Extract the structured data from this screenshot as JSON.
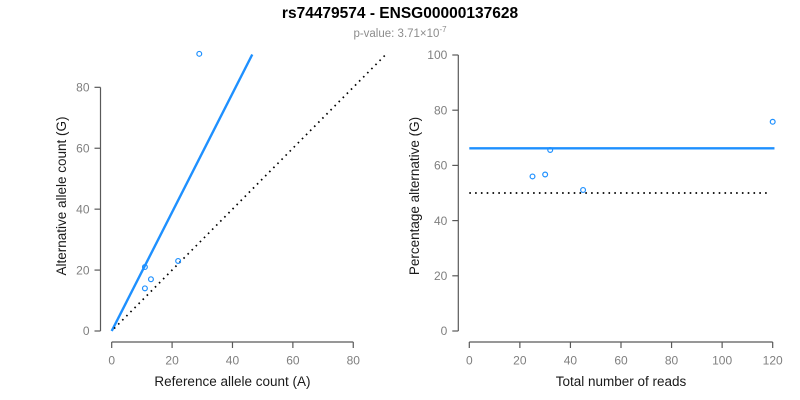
{
  "header": {
    "title": "rs74479574 - ENSG00000137628",
    "pvalue_text": "p-value: 3.71×10",
    "pvalue_exponent": "-7"
  },
  "colors": {
    "line_blue": "#1E90FF",
    "line_black": "#000000",
    "axis": "#595959",
    "tick_label": "#7f7f7f",
    "axis_title": "#1a1a1a",
    "background": "#ffffff"
  },
  "chart_data": [
    {
      "type": "scatter",
      "panel": "left",
      "xlabel": "Reference allele count (A)",
      "ylabel": "Alternative allele count (G)",
      "xticks": [
        0,
        20,
        40,
        60,
        80
      ],
      "yticks": [
        0,
        20,
        40,
        60,
        80
      ],
      "xlim": [
        0,
        91
      ],
      "ylim": [
        0,
        92
      ],
      "grid": false,
      "legend": null,
      "points": [
        [
          11,
          21
        ],
        [
          13,
          17
        ],
        [
          11,
          14
        ],
        [
          22,
          23
        ],
        [
          29,
          91
        ]
      ],
      "lines": [
        {
          "role": "expected-ratio-line",
          "style": "solid",
          "color_key": "line_blue",
          "slope": 1.95,
          "intercept": 0,
          "x_start": 0
        },
        {
          "role": "identity-line",
          "style": "dotted",
          "color_key": "line_black",
          "slope": 1,
          "intercept": 0,
          "x_start": 0.8
        }
      ]
    },
    {
      "type": "scatter",
      "panel": "right",
      "xlabel": "Total number of reads",
      "ylabel": "Percentage alternative (G)",
      "xticks": [
        0,
        20,
        40,
        60,
        80,
        100,
        120
      ],
      "yticks": [
        0,
        20,
        40,
        60,
        80,
        100
      ],
      "xlim": [
        0,
        121
      ],
      "ylim": [
        0,
        100
      ],
      "grid": false,
      "legend": null,
      "points": [
        [
          32,
          65.6
        ],
        [
          30,
          56.7
        ],
        [
          25,
          56
        ],
        [
          45,
          51.1
        ],
        [
          120,
          75.8
        ]
      ],
      "lines": [
        {
          "role": "expected-percentage-line",
          "style": "solid",
          "color_key": "line_blue",
          "horizontal_y": 66.2,
          "x_range": [
            0,
            120.7
          ]
        },
        {
          "role": "null-percentage-line",
          "style": "dotted",
          "color_key": "line_black",
          "horizontal_y": 50,
          "x_range": [
            0,
            118.3
          ]
        }
      ]
    }
  ]
}
